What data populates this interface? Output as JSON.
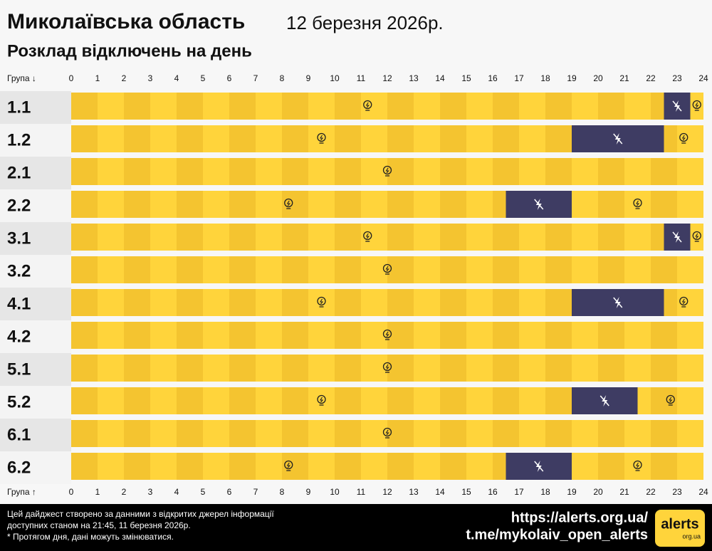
{
  "chart_data": {
    "type": "timeline",
    "title": "Миколаївська область",
    "date": "12 березня 2026р.",
    "subtitle": "Розклад відключень на день",
    "top_axis_label": "Група ↓",
    "bottom_axis_label": "Група ↑",
    "categories": [
      "1.1",
      "1.2",
      "2.1",
      "2.2",
      "3.1",
      "3.2",
      "4.1",
      "4.2",
      "5.1",
      "5.2",
      "6.1",
      "6.2"
    ],
    "outages": [
      [
        [
          22.5,
          23.5
        ]
      ],
      [
        [
          19,
          22.5
        ]
      ],
      [],
      [
        [
          16.5,
          19
        ]
      ],
      [
        [
          22.5,
          23.5
        ]
      ],
      [],
      [
        [
          19,
          22.5
        ]
      ],
      [],
      [],
      [
        [
          19,
          21.5
        ]
      ],
      [],
      [
        [
          16.5,
          19
        ]
      ]
    ],
    "xlim": [
      0,
      24
    ],
    "xticks": [
      0,
      1,
      2,
      3,
      4,
      5,
      6,
      7,
      8,
      9,
      10,
      11,
      12,
      13,
      14,
      15,
      16,
      17,
      18,
      19,
      20,
      21,
      22,
      23,
      24
    ],
    "on_colors": [
      "#f4c430",
      "#ffd43b"
    ],
    "off_color": "#3e3c63"
  },
  "footer": {
    "note_lines": [
      "Цей дайджест створено за данними з відкритих джерел інформації",
      "доступних станом на 21:45, 11 березня 2026р.",
      "* Протягом дня, дані можуть змінюватися."
    ],
    "links": [
      "https://alerts.org.ua/",
      "t.me/mykolaiv_open_alerts"
    ],
    "logo": "alerts",
    "logo_sub": "org.ua"
  }
}
